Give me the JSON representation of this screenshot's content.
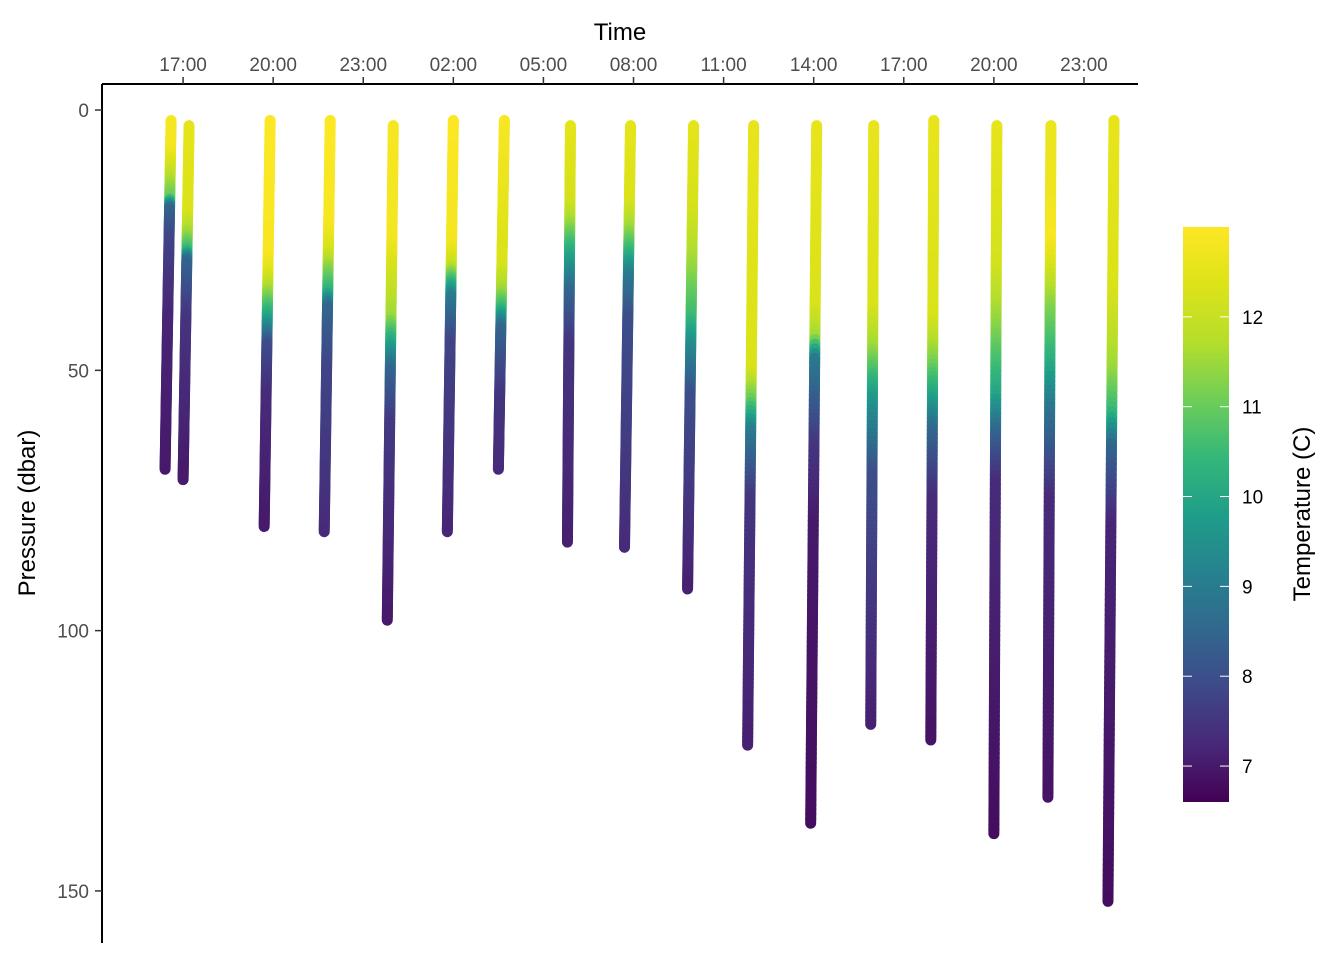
{
  "chart_data": {
    "type": "scatter",
    "title": "",
    "xlabel": "Time",
    "ylabel": "Pressure (dbar)",
    "x_axis_position": "top",
    "y_reversed": true,
    "x_ticks": [
      "17:00",
      "20:00",
      "23:00",
      "02:00",
      "05:00",
      "08:00",
      "11:00",
      "14:00",
      "17:00",
      "20:00",
      "23:00"
    ],
    "x_tick_hours": [
      17,
      20,
      23,
      26,
      29,
      32,
      35,
      38,
      41,
      44,
      47
    ],
    "xlim_hours": [
      14.3,
      48.8
    ],
    "y_ticks": [
      0,
      50,
      100,
      150
    ],
    "y_tick_labels": [
      "0",
      "50",
      "100",
      "150"
    ],
    "ylim": [
      -5,
      160
    ],
    "grid": false,
    "legend": {
      "title": "Temperature (C)",
      "placement": "right",
      "ticks": [
        7,
        8,
        9,
        10,
        11,
        12
      ],
      "tick_labels": [
        "7",
        "8",
        "9",
        "10",
        "11",
        "12"
      ],
      "range": [
        6.6,
        13.0
      ],
      "colormap": "viridis"
    },
    "profiles": [
      {
        "time_start": 16.6,
        "time_end": 16.4,
        "p_start": 2,
        "p_end": 69,
        "temps": [
          [
            0,
            12.9
          ],
          [
            8,
            12.8
          ],
          [
            12,
            12.0
          ],
          [
            17,
            11.0
          ],
          [
            19,
            8.5
          ],
          [
            25,
            7.8
          ],
          [
            40,
            7.2
          ],
          [
            69,
            7.0
          ]
        ]
      },
      {
        "time_start": 17.2,
        "time_end": 17.0,
        "p_start": 3,
        "p_end": 71,
        "temps": [
          [
            0,
            12.6
          ],
          [
            20,
            12.3
          ],
          [
            24,
            11.5
          ],
          [
            27,
            10.5
          ],
          [
            29,
            8.5
          ],
          [
            40,
            7.5
          ],
          [
            71,
            7.0
          ]
        ]
      },
      {
        "time_start": 19.9,
        "time_end": 19.7,
        "p_start": 2,
        "p_end": 80,
        "temps": [
          [
            0,
            13.0
          ],
          [
            28,
            12.9
          ],
          [
            31,
            12.5
          ],
          [
            35,
            11.5
          ],
          [
            40,
            10.0
          ],
          [
            45,
            8.0
          ],
          [
            55,
            7.3
          ],
          [
            80,
            7.0
          ]
        ]
      },
      {
        "time_start": 21.9,
        "time_end": 21.7,
        "p_start": 2,
        "p_end": 81,
        "temps": [
          [
            0,
            13.0
          ],
          [
            22,
            12.9
          ],
          [
            27,
            12.3
          ],
          [
            30,
            11.5
          ],
          [
            35,
            10.3
          ],
          [
            38,
            8.5
          ],
          [
            50,
            7.8
          ],
          [
            81,
            7.3
          ]
        ]
      },
      {
        "time_start": 24.0,
        "time_end": 23.8,
        "p_start": 3,
        "p_end": 98,
        "temps": [
          [
            0,
            12.9
          ],
          [
            25,
            12.8
          ],
          [
            30,
            12.3
          ],
          [
            40,
            11.5
          ],
          [
            45,
            10.0
          ],
          [
            50,
            8.5
          ],
          [
            60,
            7.6
          ],
          [
            98,
            7.0
          ]
        ]
      },
      {
        "time_start": 26.0,
        "time_end": 25.8,
        "p_start": 2,
        "p_end": 81,
        "temps": [
          [
            0,
            13.0
          ],
          [
            26,
            12.8
          ],
          [
            30,
            12.0
          ],
          [
            32,
            11.0
          ],
          [
            36,
            9.0
          ],
          [
            45,
            7.8
          ],
          [
            81,
            7.2
          ]
        ]
      },
      {
        "time_start": 27.7,
        "time_end": 27.5,
        "p_start": 2,
        "p_end": 69,
        "temps": [
          [
            0,
            13.0
          ],
          [
            7,
            12.8
          ],
          [
            30,
            12.3
          ],
          [
            35,
            11.5
          ],
          [
            38,
            10.5
          ],
          [
            42,
            8.5
          ],
          [
            55,
            7.5
          ],
          [
            69,
            7.3
          ]
        ]
      },
      {
        "time_start": 29.9,
        "time_end": 29.8,
        "p_start": 3,
        "p_end": 83,
        "temps": [
          [
            0,
            12.6
          ],
          [
            18,
            12.2
          ],
          [
            22,
            11.5
          ],
          [
            26,
            10.5
          ],
          [
            35,
            8.5
          ],
          [
            45,
            7.5
          ],
          [
            83,
            7.1
          ]
        ]
      },
      {
        "time_start": 31.9,
        "time_end": 31.7,
        "p_start": 3,
        "p_end": 84,
        "temps": [
          [
            0,
            12.6
          ],
          [
            18,
            12.3
          ],
          [
            23,
            11.5
          ],
          [
            27,
            10.5
          ],
          [
            32,
            9.0
          ],
          [
            40,
            8.0
          ],
          [
            84,
            7.3
          ]
        ]
      },
      {
        "time_start": 34.0,
        "time_end": 33.8,
        "p_start": 3,
        "p_end": 92,
        "temps": [
          [
            0,
            12.6
          ],
          [
            20,
            12.2
          ],
          [
            30,
            11.5
          ],
          [
            40,
            10.5
          ],
          [
            45,
            9.5
          ],
          [
            55,
            8.0
          ],
          [
            92,
            7.1
          ]
        ]
      },
      {
        "time_start": 36.0,
        "time_end": 35.8,
        "p_start": 3,
        "p_end": 122,
        "temps": [
          [
            0,
            12.6
          ],
          [
            50,
            12.3
          ],
          [
            56,
            11.0
          ],
          [
            62,
            9.0
          ],
          [
            75,
            7.5
          ],
          [
            122,
            7.1
          ]
        ]
      },
      {
        "time_start": 38.1,
        "time_end": 37.9,
        "p_start": 3,
        "p_end": 137,
        "temps": [
          [
            0,
            12.6
          ],
          [
            38,
            12.3
          ],
          [
            44,
            11.5
          ],
          [
            48,
            9.0
          ],
          [
            65,
            7.5
          ],
          [
            80,
            7.0
          ],
          [
            137,
            6.8
          ]
        ]
      },
      {
        "time_start": 40.0,
        "time_end": 39.9,
        "p_start": 3,
        "p_end": 118,
        "temps": [
          [
            0,
            12.6
          ],
          [
            38,
            12.3
          ],
          [
            46,
            11.5
          ],
          [
            55,
            9.8
          ],
          [
            70,
            8.0
          ],
          [
            118,
            7.1
          ]
        ]
      },
      {
        "time_start": 42.0,
        "time_end": 41.9,
        "p_start": 2,
        "p_end": 121,
        "temps": [
          [
            0,
            12.6
          ],
          [
            40,
            12.3
          ],
          [
            48,
            11.3
          ],
          [
            55,
            10.0
          ],
          [
            62,
            8.5
          ],
          [
            75,
            7.3
          ],
          [
            121,
            6.9
          ]
        ]
      },
      {
        "time_start": 44.1,
        "time_end": 44.0,
        "p_start": 3,
        "p_end": 139,
        "temps": [
          [
            0,
            12.6
          ],
          [
            30,
            12.2
          ],
          [
            40,
            11.5
          ],
          [
            55,
            10.0
          ],
          [
            62,
            8.5
          ],
          [
            72,
            7.3
          ],
          [
            139,
            6.8
          ]
        ]
      },
      {
        "time_start": 45.9,
        "time_end": 45.8,
        "p_start": 3,
        "p_end": 132,
        "temps": [
          [
            0,
            12.6
          ],
          [
            15,
            12.7
          ],
          [
            25,
            12.9
          ],
          [
            30,
            12.3
          ],
          [
            38,
            11.3
          ],
          [
            48,
            10.3
          ],
          [
            58,
            8.8
          ],
          [
            75,
            7.3
          ],
          [
            132,
            6.9
          ]
        ]
      },
      {
        "time_start": 48.0,
        "time_end": 47.8,
        "p_start": 2,
        "p_end": 152,
        "temps": [
          [
            0,
            12.6
          ],
          [
            35,
            12.3
          ],
          [
            50,
            11.5
          ],
          [
            58,
            10.5
          ],
          [
            65,
            8.5
          ],
          [
            80,
            7.2
          ],
          [
            152,
            6.8
          ]
        ]
      }
    ]
  }
}
